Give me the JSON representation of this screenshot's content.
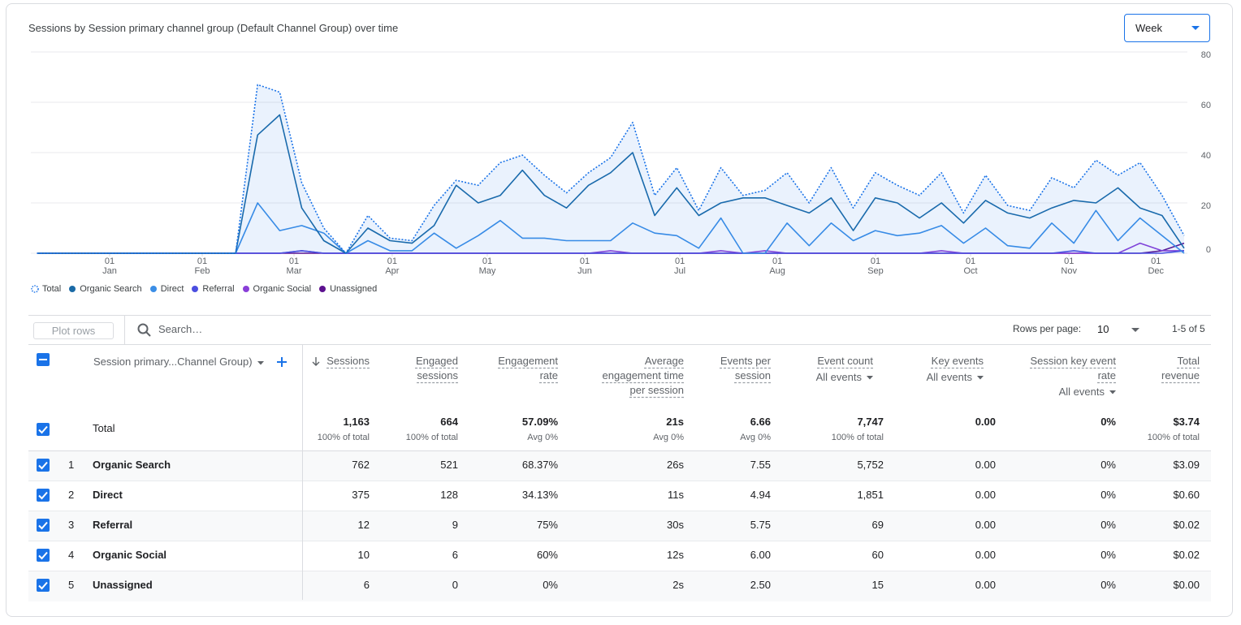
{
  "header": {
    "title": "Sessions by Session primary channel group (Default Channel Group) over time",
    "interval": "Week"
  },
  "chart_data": {
    "type": "line",
    "x": [
      0,
      1,
      2,
      3,
      4,
      5,
      6,
      7,
      8,
      9,
      10,
      11,
      12,
      13,
      14,
      15,
      16,
      17,
      18,
      19,
      20,
      21,
      22,
      23,
      24,
      25,
      26,
      27,
      28,
      29,
      30,
      31,
      32,
      33,
      34,
      35,
      36,
      37,
      38,
      39,
      40,
      41,
      42,
      43,
      44,
      45,
      46,
      47,
      48,
      49,
      50,
      51,
      52
    ],
    "xlim": [
      -0.28,
      52
    ],
    "xticks": [
      {
        "value": 3.29,
        "label": "01\nJan"
      },
      {
        "value": 7.49,
        "label": "01\nFeb"
      },
      {
        "value": 11.65,
        "label": "01\nMar"
      },
      {
        "value": 16.1,
        "label": "01\nApr"
      },
      {
        "value": 20.41,
        "label": "01\nMay"
      },
      {
        "value": 24.83,
        "label": "01\nJun"
      },
      {
        "value": 29.14,
        "label": "01\nJul"
      },
      {
        "value": 33.56,
        "label": "01\nAug"
      },
      {
        "value": 38.01,
        "label": "01\nSep"
      },
      {
        "value": 42.32,
        "label": "01\nOct"
      },
      {
        "value": 46.78,
        "label": "01\nNov"
      },
      {
        "value": 50.72,
        "label": "01\nDec"
      }
    ],
    "ylim": [
      0,
      80
    ],
    "yticks": [
      0,
      20,
      40,
      60,
      80
    ],
    "grid": true,
    "y_axis_side": "right",
    "series": [
      {
        "name": "Total",
        "color": "#1a73e8",
        "style": "dotted",
        "area": true,
        "values": [
          0,
          0,
          0,
          0,
          0,
          0,
          0,
          0,
          0,
          0,
          67,
          64,
          28,
          10,
          0,
          15,
          6,
          5,
          19,
          29,
          27,
          36,
          39,
          31,
          24,
          32,
          38,
          52,
          23,
          34,
          17,
          34,
          23,
          25,
          32,
          20,
          34,
          18,
          32,
          27,
          23,
          32,
          16,
          31,
          19,
          17,
          30,
          26,
          37,
          31,
          36,
          23,
          7
        ]
      },
      {
        "name": "Organic Search",
        "color": "#1a6aa6",
        "values": [
          0,
          0,
          0,
          0,
          0,
          0,
          0,
          0,
          0,
          0,
          47,
          55,
          18,
          5,
          0,
          10,
          5,
          4,
          11,
          27,
          20,
          23,
          33,
          23,
          18,
          27,
          32,
          40,
          15,
          26,
          15,
          20,
          22,
          22,
          19,
          16,
          22,
          9,
          22,
          20,
          14,
          20,
          12,
          21,
          16,
          14,
          18,
          21,
          20,
          26,
          18,
          15,
          2
        ]
      },
      {
        "name": "Direct",
        "color": "#3b8ee6",
        "values": [
          0,
          0,
          0,
          0,
          0,
          0,
          0,
          0,
          0,
          0,
          20,
          9,
          11,
          8,
          0,
          5,
          1,
          1,
          8,
          2,
          7,
          13,
          6,
          6,
          5,
          5,
          5,
          12,
          8,
          7,
          2,
          14,
          0,
          0,
          12,
          3,
          12,
          5,
          9,
          7,
          8,
          11,
          4,
          10,
          3,
          2,
          12,
          4,
          17,
          5,
          14,
          7,
          0
        ]
      },
      {
        "name": "Referral",
        "color": "#4b4ee0",
        "values": [
          0,
          0,
          0,
          0,
          0,
          0,
          0,
          0,
          0,
          0,
          0,
          0,
          1,
          0,
          0,
          0,
          0,
          0,
          0,
          0,
          0,
          0,
          0,
          0,
          0,
          0,
          0,
          0,
          0,
          0,
          0,
          0,
          0,
          0,
          0,
          0,
          0,
          0,
          0,
          0,
          0,
          0,
          0,
          0,
          0,
          0,
          0,
          1,
          0,
          0,
          0,
          0,
          1
        ]
      },
      {
        "name": "Organic Social",
        "color": "#8a3fd8",
        "values": [
          0,
          0,
          0,
          0,
          0,
          0,
          0,
          0,
          0,
          0,
          0,
          0,
          1,
          0,
          0,
          0,
          0,
          0,
          0,
          0,
          0,
          0,
          0,
          0,
          0,
          0,
          1,
          0,
          0,
          0,
          0,
          1,
          0,
          1,
          0,
          0,
          0,
          0,
          0,
          0,
          0,
          1,
          0,
          0,
          0,
          0,
          0,
          0,
          0,
          0,
          4,
          1,
          1
        ]
      },
      {
        "name": "Unassigned",
        "color": "#5c118f",
        "values": [
          0,
          0,
          0,
          0,
          0,
          0,
          0,
          0,
          0,
          0,
          0,
          0,
          0,
          0,
          0,
          0,
          0,
          0,
          0,
          0,
          0,
          0,
          0,
          0,
          0,
          0,
          0,
          0,
          0,
          0,
          0,
          0,
          0,
          0,
          0,
          0,
          0,
          0,
          0,
          0,
          0,
          0,
          0,
          0,
          0,
          0,
          0,
          0,
          0,
          0,
          0,
          1,
          4
        ]
      }
    ]
  },
  "toolbar": {
    "plot_rows": "Plot rows",
    "search_placeholder": "Search…",
    "rows_per_page_label": "Rows per page:",
    "rows_per_page": 10,
    "pagination": "1-5 of 5"
  },
  "table": {
    "dimension_header": "Session primary...Channel Group)",
    "columns": [
      {
        "label": "Sessions"
      },
      {
        "label": "Engaged sessions"
      },
      {
        "label": "Engagement rate"
      },
      {
        "label": "Average engagement time per session"
      },
      {
        "label": "Events per session"
      },
      {
        "label": "Event count",
        "sublabel": "All events"
      },
      {
        "label": "Key events",
        "sublabel": "All events"
      },
      {
        "label": "Session key event rate",
        "sublabel": "All events"
      },
      {
        "label": "Total revenue"
      }
    ],
    "total": {
      "label": "Total",
      "values": [
        "1,163",
        "664",
        "57.09%",
        "21s",
        "6.66",
        "7,747",
        "0.00",
        "0%",
        "$3.74"
      ],
      "notes": [
        "100% of total",
        "100% of total",
        "Avg 0%",
        "Avg 0%",
        "Avg 0%",
        "100% of total",
        null,
        null,
        "100% of total"
      ]
    },
    "rows": [
      {
        "rank": 1,
        "name": "Organic Search",
        "values": [
          "762",
          "521",
          "68.37%",
          "26s",
          "7.55",
          "5,752",
          "0.00",
          "0%",
          "$3.09"
        ]
      },
      {
        "rank": 2,
        "name": "Direct",
        "values": [
          "375",
          "128",
          "34.13%",
          "11s",
          "4.94",
          "1,851",
          "0.00",
          "0%",
          "$0.60"
        ]
      },
      {
        "rank": 3,
        "name": "Referral",
        "values": [
          "12",
          "9",
          "75%",
          "30s",
          "5.75",
          "69",
          "0.00",
          "0%",
          "$0.02"
        ]
      },
      {
        "rank": 4,
        "name": "Organic Social",
        "values": [
          "10",
          "6",
          "60%",
          "12s",
          "6.00",
          "60",
          "0.00",
          "0%",
          "$0.02"
        ]
      },
      {
        "rank": 5,
        "name": "Unassigned",
        "values": [
          "6",
          "0",
          "0%",
          "2s",
          "2.50",
          "15",
          "0.00",
          "0%",
          "$0.00"
        ]
      }
    ]
  }
}
